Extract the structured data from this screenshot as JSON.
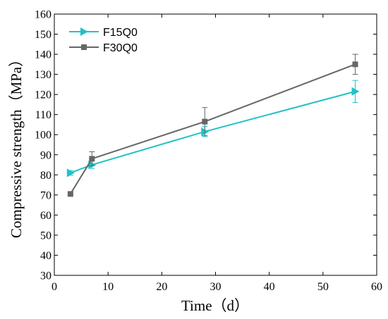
{
  "chart_data": {
    "type": "line",
    "title": "",
    "xlabel": "Time（d）",
    "ylabel": "Compressive strength（MPa）",
    "xlim": [
      0,
      60
    ],
    "ylim": [
      30,
      160
    ],
    "xticks": [
      0,
      10,
      20,
      30,
      40,
      50,
      60
    ],
    "yticks": [
      30,
      40,
      50,
      60,
      70,
      80,
      90,
      100,
      110,
      120,
      130,
      140,
      150,
      160
    ],
    "grid": false,
    "legend_position": "top-left",
    "series": [
      {
        "name": "F15Q0",
        "color": "#21c1c6",
        "marker": "triangle-right",
        "x": [
          3,
          7,
          28,
          56
        ],
        "y": [
          81,
          85,
          101.5,
          121.5
        ],
        "error": [
          1.2,
          1.8,
          2.5,
          5.5
        ]
      },
      {
        "name": "F30Q0",
        "color": "#666666",
        "marker": "square",
        "x": [
          3,
          7,
          28,
          56
        ],
        "y": [
          70.5,
          88,
          106.5,
          135
        ],
        "error": [
          0,
          3.5,
          7,
          5
        ]
      }
    ]
  }
}
